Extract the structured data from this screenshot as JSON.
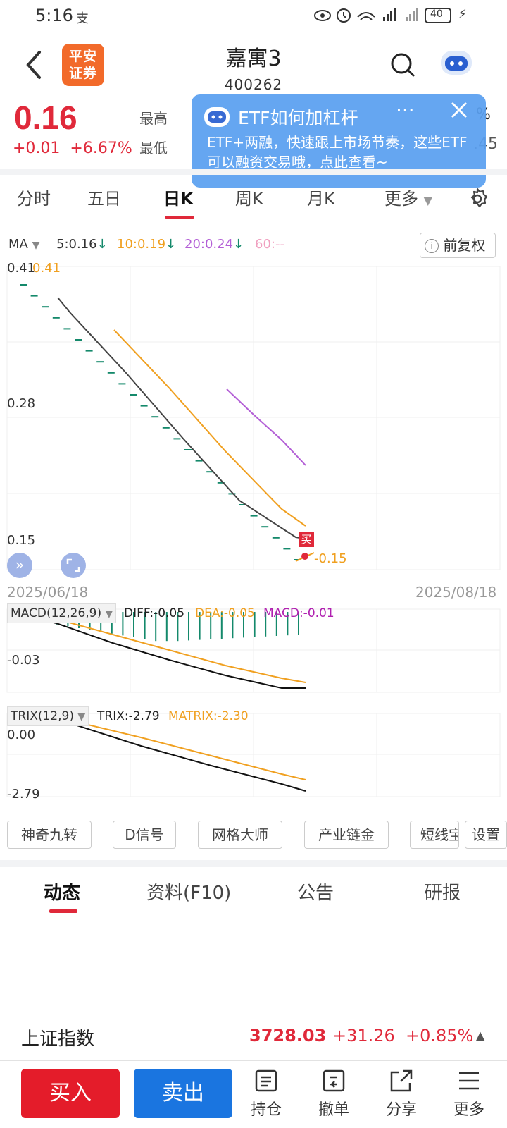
{
  "status": {
    "time": "5:16",
    "battery": "40"
  },
  "header": {
    "broker_logo": "平安证券",
    "title": "嘉寓3",
    "code": "400262"
  },
  "quote": {
    "price": "0.16",
    "change": "+0.01",
    "change_pct": "+6.67%",
    "high_label": "最高",
    "low_label": "最低",
    "right_top": "%",
    "right_bottom": ".45"
  },
  "banner": {
    "title": "ETF如何加杠杆",
    "body": "ETF+两融，快速跟上市场节奏，这些ETF可以融资交易哦，点此查看~"
  },
  "tabs": [
    "分时",
    "五日",
    "日K",
    "周K",
    "月K",
    "更多"
  ],
  "active_tab": "日K",
  "ma": {
    "label": "MA",
    "ma5": "5:0.16",
    "ma10": "10:0.19",
    "ma20": "20:0.24",
    "ma60": "60:--",
    "adjust": "前复权"
  },
  "kline": {
    "y_labels": [
      "0.41",
      "0.28",
      "0.15"
    ],
    "hi_mark": "0.41",
    "lo_mark": "0.15",
    "buy_tag": "买",
    "start_date": "2025/06/18",
    "end_date": "2025/08/18"
  },
  "macd": {
    "label": "MACD(12,26,9)",
    "diff": "DIFF:-0.05",
    "dea": "DEA:-0.05",
    "macd": "MACD:-0.01",
    "y_label": "-0.03"
  },
  "trix": {
    "label": "TRIX(12,9)",
    "trix": "TRIX:-2.79",
    "matrix": "MATRIX:-2.30",
    "y_top": "0.00",
    "y_bottom": "-2.79"
  },
  "tools": [
    "神奇九转",
    "D信号",
    "网格大师",
    "产业链金",
    "短线宝",
    "设置"
  ],
  "bottom_tabs": [
    "动态",
    "资料(F10)",
    "公告",
    "研报"
  ],
  "index": {
    "name": "上证指数",
    "value": "3728.03",
    "change": "+31.26",
    "pct": "+0.85%"
  },
  "actions": {
    "buy": "买入",
    "sell": "卖出",
    "hold": "持仓",
    "cancel": "撤单",
    "share": "分享",
    "more": "更多"
  },
  "colors": {
    "red": "#e0293a",
    "green": "#14896b",
    "orange": "#f0a020",
    "purple": "#b35fd6",
    "blue": "#1a75e0"
  }
}
